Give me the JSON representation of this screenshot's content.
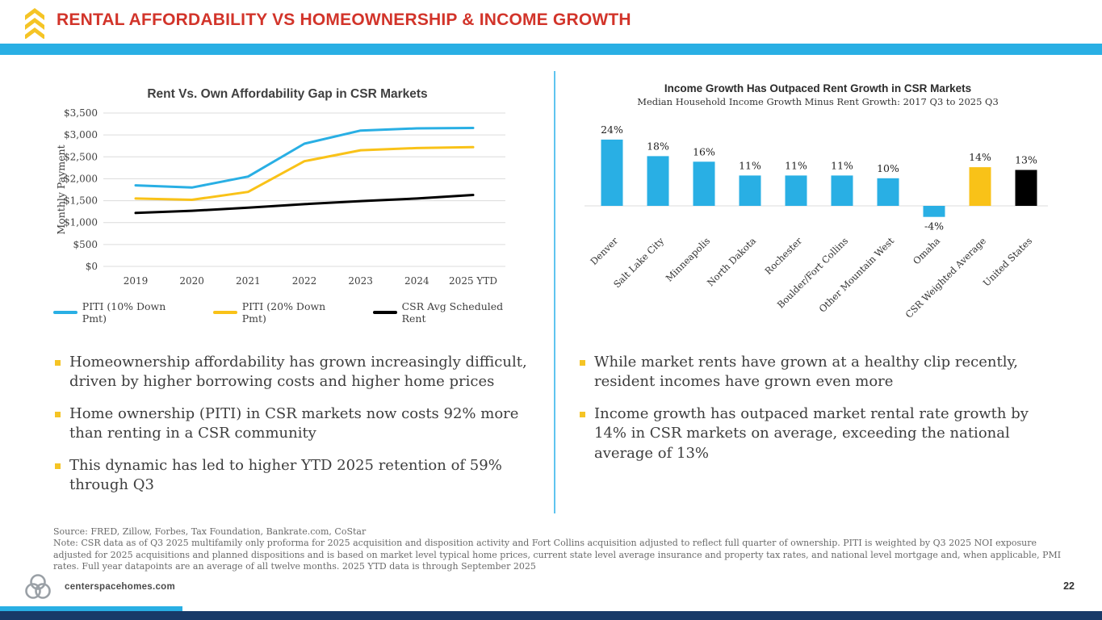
{
  "header": {
    "title": "RENTAL AFFORDABILITY VS HOMEOWNERSHIP & INCOME GROWTH"
  },
  "colors": {
    "accent_cyan": "#29afe4",
    "accent_yellow": "#f9c218",
    "title_red": "#d2342a",
    "footer_navy": "#183a68",
    "grid_gray": "#dcdcdc",
    "text_dark": "#3d3d3d"
  },
  "icons": {
    "brand_mark": "triple-chevron-up",
    "footer_logo": "centerspace-rings"
  },
  "chart_data": [
    {
      "type": "line",
      "title": "Rent Vs. Own Affordability Gap in CSR Markets",
      "ylabel": "Monthly Payment",
      "xlabel": "",
      "categories": [
        "2019",
        "2020",
        "2021",
        "2022",
        "2023",
        "2024",
        "2025 YTD"
      ],
      "ylim": [
        0,
        3500
      ],
      "ytick_step": 500,
      "ytick_labels": [
        "$0",
        "$500",
        "$1,000",
        "$1,500",
        "$2,000",
        "$2,500",
        "$3,000",
        "$3,500"
      ],
      "grid": true,
      "legend_position": "bottom",
      "series": [
        {
          "name": "PITI (10% Down Pmt)",
          "color": "#29afe4",
          "values": [
            1850,
            1800,
            2050,
            2800,
            3100,
            3150,
            3160
          ]
        },
        {
          "name": "PITI (20% Down Pmt)",
          "color": "#f9c218",
          "values": [
            1550,
            1520,
            1700,
            2400,
            2650,
            2700,
            2720
          ]
        },
        {
          "name": "CSR Avg Scheduled Rent",
          "color": "#000000",
          "values": [
            1220,
            1270,
            1340,
            1420,
            1490,
            1550,
            1630
          ]
        }
      ]
    },
    {
      "type": "bar",
      "title": "Income Growth Has Outpaced Rent Growth in CSR Markets",
      "subtitle": "Median Household Income Growth Minus Rent Growth: 2017 Q3 to 2025 Q3",
      "categories": [
        "Denver",
        "Salt Lake City",
        "Minneapolis",
        "North Dakota",
        "Rochester",
        "Boulder/Fort Collins",
        "Other Mountain West",
        "Omaha",
        "CSR Weighted Average",
        "United States"
      ],
      "values": [
        24,
        18,
        16,
        11,
        11,
        11,
        10,
        -4,
        14,
        13
      ],
      "labels": [
        "24%",
        "18%",
        "16%",
        "11%",
        "11%",
        "11%",
        "10%",
        "-4%",
        "14%",
        "13%"
      ],
      "bar_colors": [
        "#29afe4",
        "#29afe4",
        "#29afe4",
        "#29afe4",
        "#29afe4",
        "#29afe4",
        "#29afe4",
        "#29afe4",
        "#f9c218",
        "#000000"
      ],
      "ylim": [
        -6,
        26
      ],
      "grid": false,
      "legend_position": "none"
    }
  ],
  "bullets": {
    "left": [
      "Homeownership affordability has grown increasingly difficult, driven by higher borrowing costs and higher home prices",
      "Home ownership (PITI) in CSR markets now costs 92% more than renting in a CSR community",
      "This dynamic has led to higher YTD 2025 retention of 59% through Q3"
    ],
    "right": [
      "While market rents have grown at a healthy clip recently, resident incomes have grown even more",
      "Income growth has outpaced market rental rate growth by 14% in CSR markets on average, exceeding the national average of 13%"
    ]
  },
  "footer": {
    "source": "Source: FRED, Zillow, Forbes, Tax Foundation, Bankrate.com, CoStar",
    "note": "Note: CSR data as of Q3 2025 multifamily only proforma for 2025 acquisition and disposition activity and Fort Collins acquisition adjusted to reflect full quarter of ownership. PITI is weighted by Q3 2025 NOI exposure adjusted for 2025 acquisitions and planned dispositions and is based on market level typical home prices, current state level average insurance and property tax rates, and national level mortgage and, when applicable, PMI rates. Full year datapoints are an average of all twelve months. 2025 YTD data is through September 2025",
    "website": "centerspacehomes.com",
    "page_number": "22"
  }
}
